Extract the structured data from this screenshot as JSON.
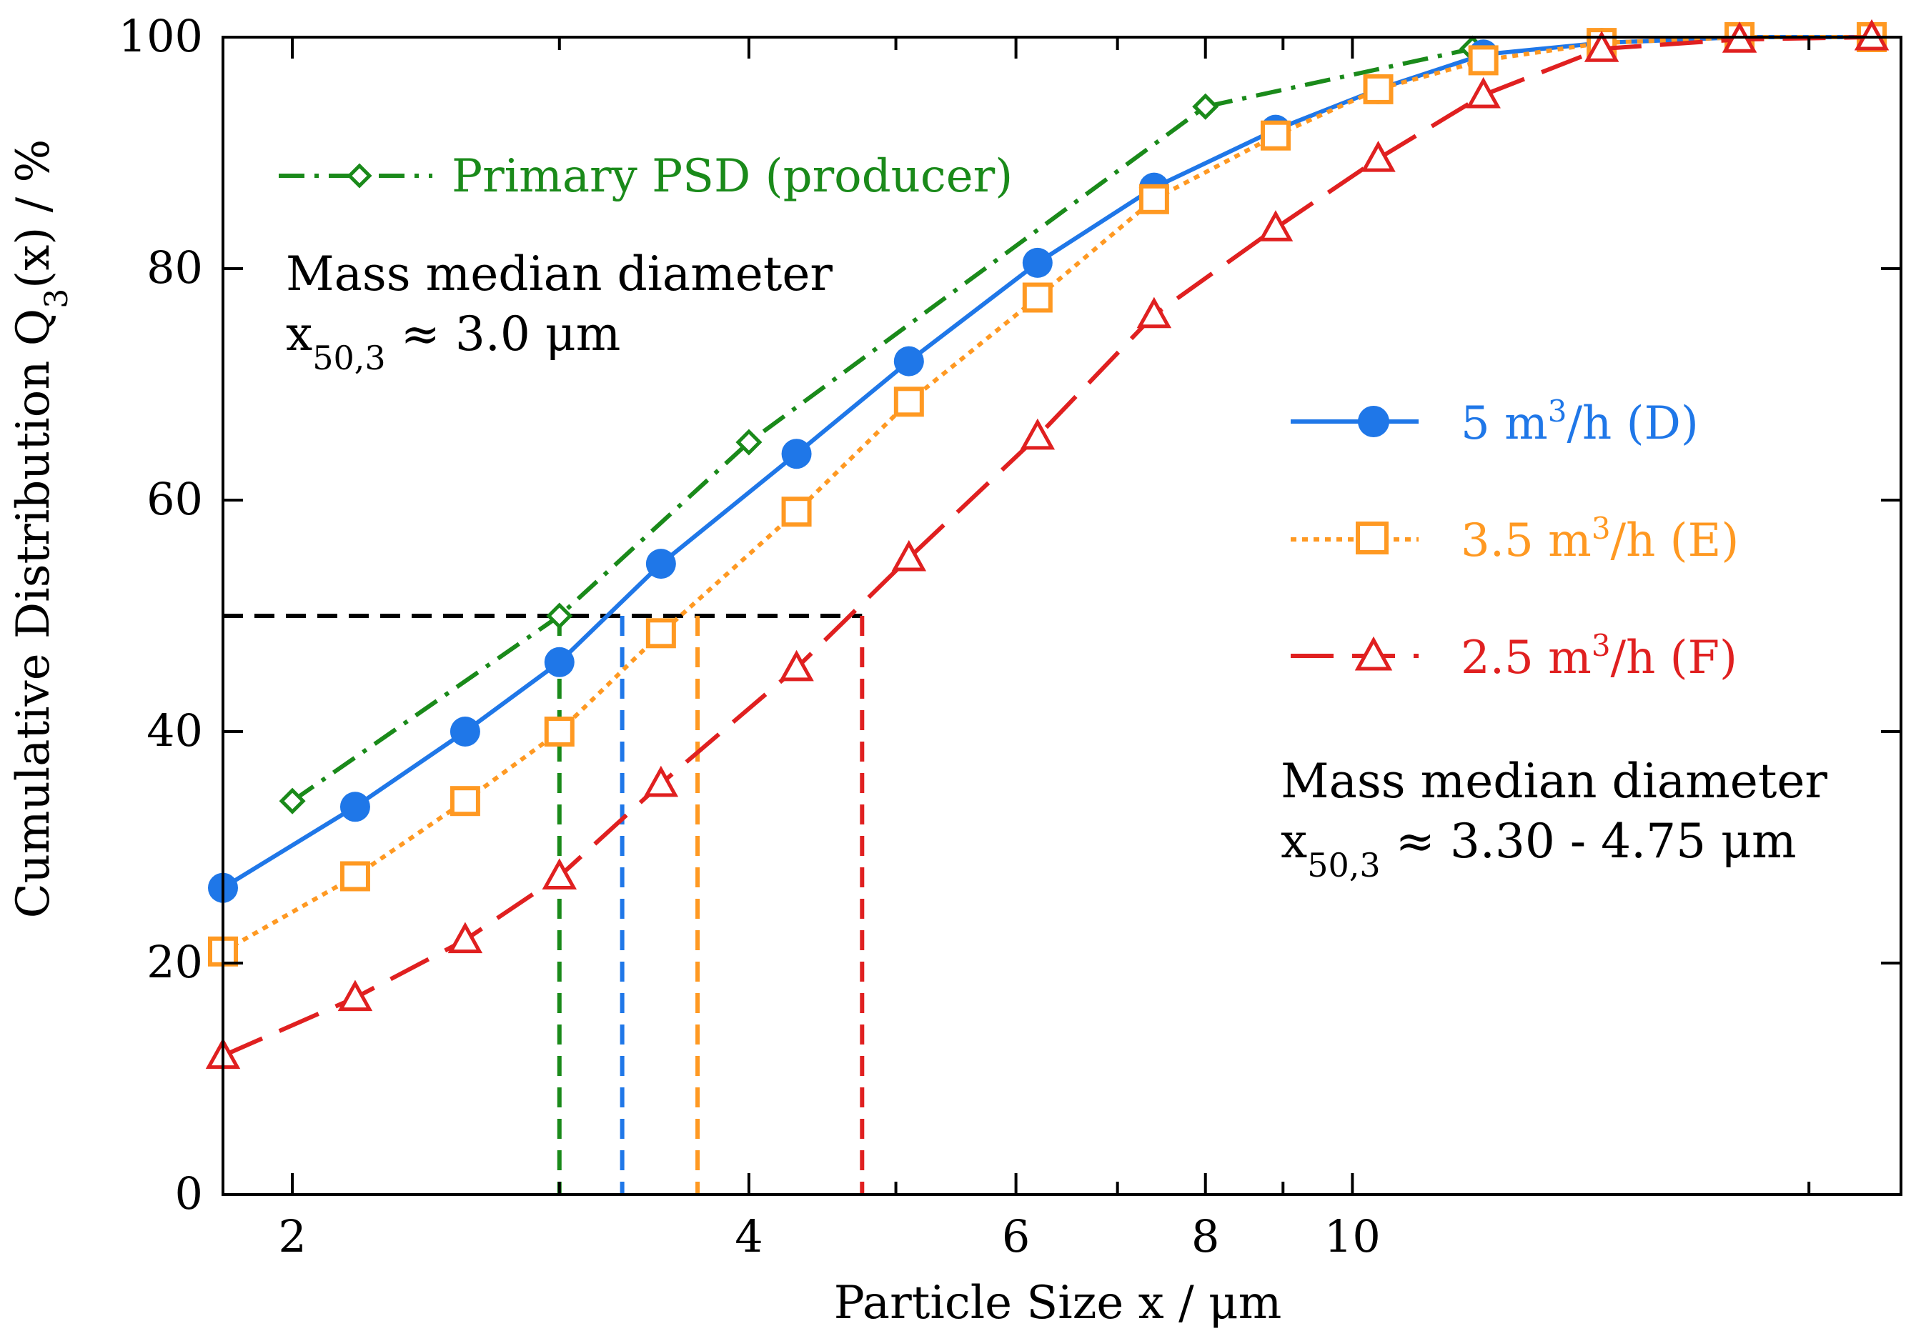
{
  "chart_data": {
    "type": "line",
    "title": "",
    "xlabel": "Particle Size x / μm",
    "ylabel": "Cumulative Distribution Q₃(x) / %",
    "x_scale": "log",
    "xlim": [
      1.8,
      23
    ],
    "ylim": [
      0,
      100
    ],
    "xticks": [
      2,
      4,
      6,
      8,
      10
    ],
    "xticks_minor": [
      3,
      5,
      7,
      9,
      20
    ],
    "yticks": [
      0,
      20,
      40,
      60,
      80,
      100
    ],
    "series": [
      {
        "name": "Primary PSD (producer)",
        "color": "#1a8a1a",
        "style": "dash-dot",
        "marker": "diamond",
        "x": [
          2.0,
          3.0,
          4.0,
          8.0,
          12.0
        ],
        "y": [
          34,
          50,
          65,
          94,
          99
        ]
      },
      {
        "name": "5 m³/h (D)",
        "color": "#1f77e8",
        "style": "solid",
        "marker": "circle",
        "x": [
          1.8,
          2.2,
          2.6,
          3.0,
          3.5,
          4.3,
          5.1,
          6.2,
          7.4,
          8.9,
          10.4,
          12.2,
          14.6,
          18.0,
          22.0
        ],
        "y": [
          26.5,
          33.5,
          40,
          46,
          54.5,
          64,
          72,
          80.5,
          87,
          92,
          95.5,
          98.5,
          99.5,
          100,
          100
        ]
      },
      {
        "name": "3.5 m³/h (E)",
        "color": "#ff9922",
        "style": "dotted",
        "marker": "square",
        "x": [
          1.8,
          2.2,
          2.6,
          3.0,
          3.5,
          4.3,
          5.1,
          6.2,
          7.4,
          8.9,
          10.4,
          12.2,
          14.6,
          18.0,
          22.0
        ],
        "y": [
          21,
          27.5,
          34,
          40,
          48.5,
          59,
          68.5,
          77.5,
          86,
          91.5,
          95.5,
          98,
          99.5,
          100,
          100
        ]
      },
      {
        "name": "2.5 m³/h (F)",
        "color": "#e02020",
        "style": "long-dash",
        "marker": "triangle",
        "x": [
          1.8,
          2.2,
          2.6,
          3.0,
          3.5,
          4.3,
          5.1,
          6.2,
          7.4,
          8.9,
          10.4,
          12.2,
          14.6,
          18.0,
          22.0
        ],
        "y": [
          12,
          17,
          22,
          27.5,
          35.5,
          45.5,
          55,
          65.5,
          76,
          83.5,
          89.5,
          95,
          99,
          99.8,
          100
        ]
      }
    ],
    "reference_lines": {
      "horizontal_y": 50,
      "horizontal_x_end": 4.75,
      "vertical": [
        {
          "x": 3.0,
          "color": "#1a8a1a"
        },
        {
          "x": 3.3,
          "color": "#1f77e8"
        },
        {
          "x": 3.7,
          "color": "#ff9922"
        },
        {
          "x": 4.75,
          "color": "#e02020"
        }
      ]
    }
  },
  "annotations": {
    "left": {
      "line1": "Mass median diameter",
      "symbol": "x",
      "subscript": "50,3",
      "rest": " ≈ 3.0 μm"
    },
    "right": {
      "line1": "Mass median diameter",
      "symbol": "x",
      "subscript": "50,3",
      "rest": " ≈ 3.30 - 4.75 μm"
    }
  },
  "legend": {
    "primary": "Primary PSD (producer)",
    "d": {
      "pre": "5 m",
      "sup": "3",
      "post": "/h (D)"
    },
    "e": {
      "pre": "3.5 m",
      "sup": "3",
      "post": "/h (E)"
    },
    "f": {
      "pre": "2.5 m",
      "sup": "3",
      "post": "/h (F)"
    }
  },
  "ylabel_parts": {
    "pre": "Cumulative Distribution Q",
    "sub": "3",
    "post": "(x)  /  %"
  }
}
